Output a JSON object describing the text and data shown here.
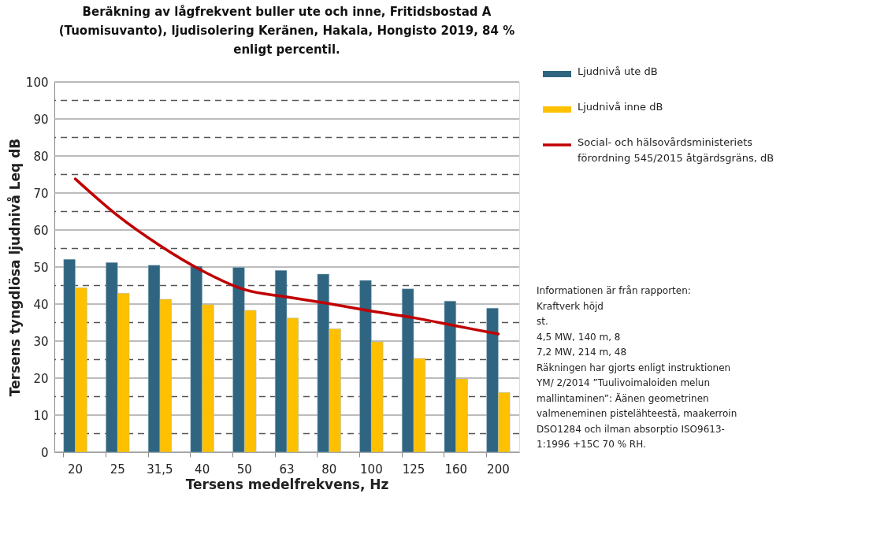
{
  "chart_data": {
    "type": "bar",
    "title": "Beräkning av lågfrekvent buller ute och inne, Fritidsbostad A (Tuomisuvanto), ljudisolering Keränen, Hakala, Hongisto 2019, 84 % enligt percentil.",
    "xlabel": "Tersens medelfrekvens, Hz",
    "ylabel": "Tersens tyngdlösa ljudnivå    Leq dB",
    "categories": [
      "20",
      "25",
      "31,5",
      "40",
      "50",
      "63",
      "80",
      "100",
      "125",
      "160",
      "200"
    ],
    "series": [
      {
        "name": "Ljudnivå ute dB",
        "color": "#2f6580",
        "values": [
          52.1,
          51.2,
          50.5,
          50.2,
          49.9,
          49.1,
          48.1,
          46.4,
          44.1,
          40.8,
          38.9
        ]
      },
      {
        "name": "Ljudnivå inne dB",
        "color": "#ffc000",
        "values": [
          44.4,
          42.9,
          41.3,
          39.9,
          38.3,
          36.2,
          33.3,
          29.8,
          25.3,
          19.8,
          16.1
        ]
      },
      {
        "name": "Social- och hälsovårdsministeriets förordning 545/2015 åtgärdsgräns, dB",
        "color": "#c00000",
        "type": "line",
        "values": [
          73.8,
          63.9,
          55.8,
          49.0,
          43.9,
          41.9,
          40.1,
          38.1,
          36.3,
          34.1,
          31.9
        ]
      }
    ],
    "ylim": [
      0,
      100
    ],
    "yticks": [
      0,
      {
        "value": 5,
        "label": null
      },
      10,
      {
        "value": 15,
        "label": null
      },
      20,
      {
        "value": 25,
        "label": null
      },
      30,
      {
        "value": 35,
        "label": null
      },
      40,
      {
        "value": 45,
        "label": null
      },
      50,
      {
        "value": 55,
        "label": null
      },
      60,
      {
        "value": 65,
        "label": null
      },
      70,
      {
        "value": 75,
        "label": null
      },
      80,
      {
        "value": 85,
        "label": null
      },
      90,
      {
        "value": 95,
        "label": null
      },
      100
    ],
    "grid": "y",
    "legend": "top right",
    "annotations": [
      "Informationen är från rapporten:",
      "Kraftverk höjd",
      "st.",
      "4,5 MW, 140 m, 8",
      "7,2 MW, 214 m, 48",
      "Räkningen har gjorts enligt instruktionen",
      "YM/ 2/2014 ”Tuulivoimaloiden melun",
      "mallintaminen”: Äänen geometrinen",
      "valmeneminen pistelähteestä, maakerroin",
      "DSO1284 och ilman absorptio ISO9613-",
      "1:1996 +15C 70 % RH."
    ]
  }
}
